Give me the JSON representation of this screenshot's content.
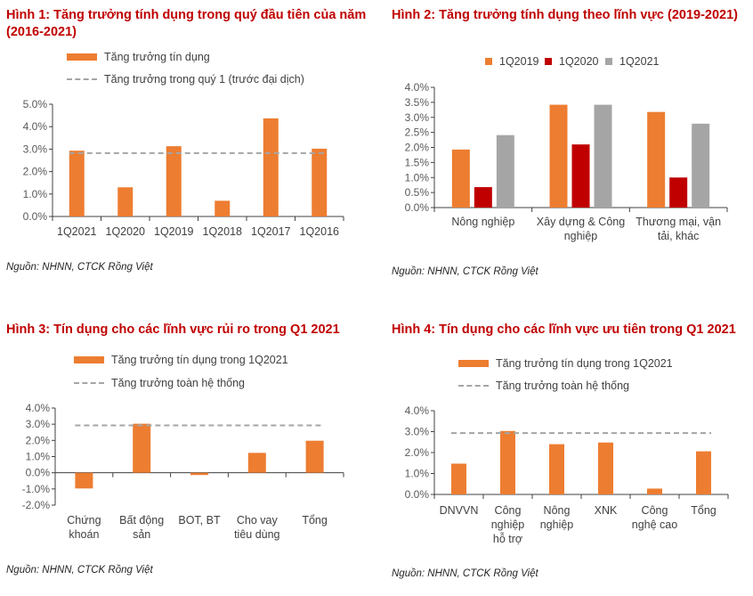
{
  "colors": {
    "orange": "#ED7D31",
    "red": "#C00000",
    "gray": "#A5A5A5",
    "title": "#C00000"
  },
  "charts": [
    {
      "title": "Hình 1: Tăng trưởng tính dụng trong quý đầu tiên của năm (2016-2021)",
      "source": "Nguồn: NHNN, CTCK Rồng Việt",
      "legend": [
        "Tăng trưởng tín dụng",
        "Tăng trưởng trong quý 1 (trước đại dịch)"
      ]
    },
    {
      "title": "Hình 2: Tăng trưởng tính dụng theo lĩnh vực (2019-2021)",
      "source": "Nguồn: NHNN, CTCK Rồng Việt",
      "legend": [
        "1Q2019",
        "1Q2020",
        "1Q2021"
      ]
    },
    {
      "title": "Hình 3: Tín dụng cho các lĩnh vực rủi ro trong Q1 2021",
      "source": "Nguồn: NHNN, CTCK Rồng Việt",
      "legend": [
        "Tăng trưởng tín dụng trong 1Q2021",
        "Tăng trưởng toàn hệ thống"
      ]
    },
    {
      "title": "Hình 4: Tín dụng cho các lĩnh vực ưu tiên trong Q1 2021",
      "source": "Nguồn: NHNN, CTCK Rồng Việt",
      "legend": [
        "Tăng trưởng tín dụng trong 1Q2021",
        "Tăng trưởng toàn hệ thống"
      ]
    }
  ],
  "chart_data": [
    {
      "type": "bar",
      "categories": [
        "1Q2021",
        "1Q2020",
        "1Q2019",
        "1Q2018",
        "1Q2017",
        "1Q2016"
      ],
      "series": [
        {
          "name": "Tăng trưởng tín dụng",
          "values": [
            2.93,
            1.3,
            3.13,
            0.7,
            4.37,
            3.02
          ]
        }
      ],
      "reference_line": {
        "name": "Tăng trưởng trong quý 1 (trước đại dịch)",
        "value": 2.82
      },
      "ylim": [
        0,
        5
      ],
      "yticks": [
        "0.0%",
        "1.0%",
        "2.0%",
        "3.0%",
        "4.0%",
        "5.0%"
      ],
      "unit": "%",
      "grid": false,
      "legend": "top"
    },
    {
      "type": "bar",
      "categories": [
        "Nông nghiệp",
        "Xây dựng & Công nghiệp",
        "Thương mại, vận tải, khác"
      ],
      "series": [
        {
          "name": "1Q2019",
          "values": [
            1.93,
            3.42,
            3.18
          ]
        },
        {
          "name": "1Q2020",
          "values": [
            0.68,
            2.1,
            1.0
          ]
        },
        {
          "name": "1Q2021",
          "values": [
            2.41,
            3.42,
            2.79
          ]
        }
      ],
      "ylim": [
        0,
        4
      ],
      "yticks": [
        "0.0%",
        "0.5%",
        "1.0%",
        "1.5%",
        "2.0%",
        "2.5%",
        "3.0%",
        "3.5%",
        "4.0%"
      ],
      "unit": "%",
      "grid": false,
      "legend": "top"
    },
    {
      "type": "bar",
      "categories": [
        "Chứng khoán",
        "Bất động sản",
        "BOT, BT",
        "Cho vay tiêu dùng",
        "Tổng"
      ],
      "series": [
        {
          "name": "Tăng trưởng tín dụng trong 1Q2021",
          "values": [
            -0.97,
            3.03,
            -0.14,
            1.23,
            1.98
          ]
        }
      ],
      "reference_line": {
        "name": "Tăng trưởng toàn hệ thống",
        "value": 2.93
      },
      "ylim": [
        -2,
        4
      ],
      "yticks": [
        "-2.0%",
        "-1.0%",
        "0.0%",
        "1.0%",
        "2.0%",
        "3.0%",
        "4.0%"
      ],
      "unit": "%",
      "grid": false,
      "legend": "top"
    },
    {
      "type": "bar",
      "categories": [
        "DNVVN",
        "Công nghiệp hỗ trợ",
        "Nông nghiệp",
        "XNK",
        "Công nghệ cao",
        "Tổng"
      ],
      "series": [
        {
          "name": "Tăng trưởng tín dụng trong 1Q2021",
          "values": [
            1.47,
            3.03,
            2.4,
            2.48,
            0.28,
            2.06
          ]
        }
      ],
      "reference_line": {
        "name": "Tăng trưởng toàn hệ thống",
        "value": 2.93
      },
      "ylim": [
        0,
        4
      ],
      "yticks": [
        "0.0%",
        "1.0%",
        "2.0%",
        "3.0%",
        "4.0%"
      ],
      "unit": "%",
      "grid": false,
      "legend": "top"
    }
  ]
}
